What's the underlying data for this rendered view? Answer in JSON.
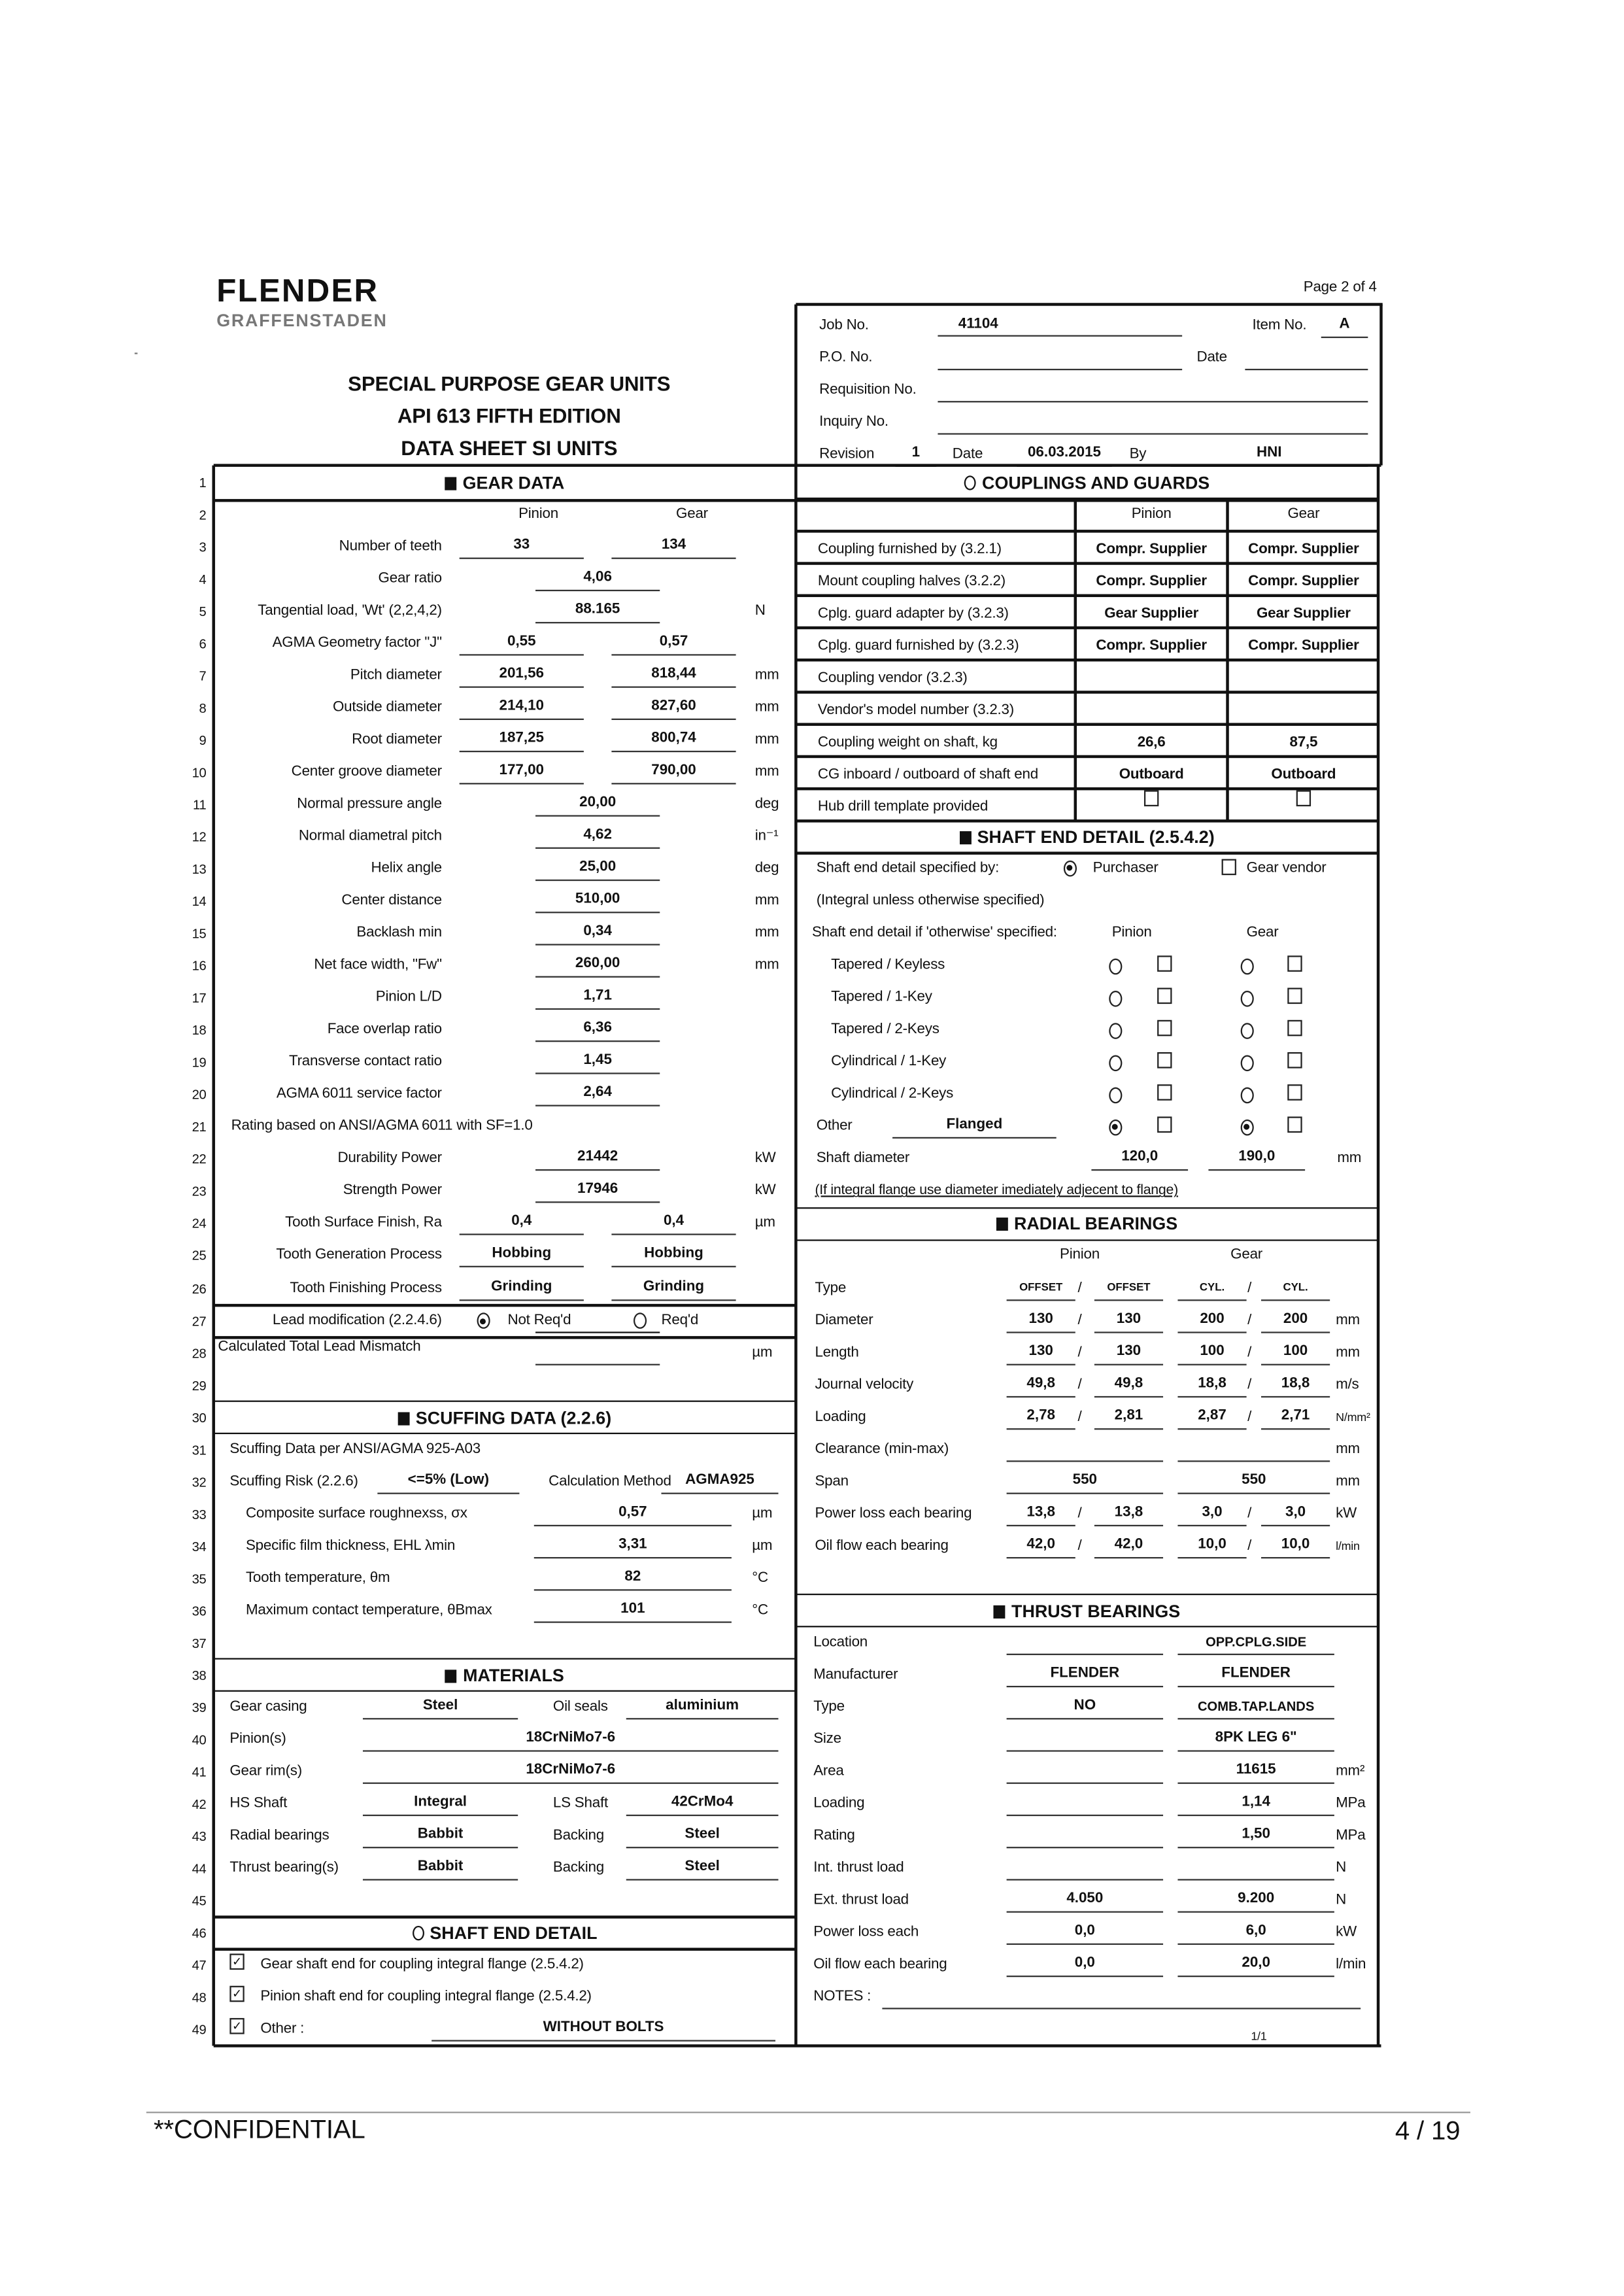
{
  "header": {
    "logo_main": "FLENDER",
    "logo_sub": "GRAFFENSTADEN",
    "page": "Page 2 of 4",
    "titles": [
      "SPECIAL PURPOSE GEAR UNITS",
      "API 613 FIFTH EDITION",
      "DATA SHEET SI UNITS"
    ]
  },
  "job": {
    "job_no_label": "Job No.",
    "job_no": "41104",
    "item_no_label": "Item No.",
    "item_no": "A",
    "po_label": "P.O. No.",
    "po": "",
    "date_label": "Date",
    "date": "",
    "requisition_label": "Requisition No.",
    "requisition": "",
    "inquiry_label": "Inquiry No.",
    "inquiry": "",
    "revision_label": "Revision",
    "revision": "1",
    "rev_date_label": "Date",
    "rev_date": "06.03.2015",
    "by_label": "By",
    "by": "HNI"
  },
  "row_numbers": [
    "1",
    "2",
    "3",
    "4",
    "5",
    "6",
    "7",
    "8",
    "9",
    "10",
    "11",
    "12",
    "13",
    "14",
    "15",
    "16",
    "17",
    "18",
    "19",
    "20",
    "21",
    "22",
    "23",
    "24",
    "25",
    "26",
    "27",
    "28",
    "29",
    "30",
    "31",
    "32",
    "33",
    "34",
    "35",
    "36",
    "37",
    "38",
    "39",
    "40",
    "41",
    "42",
    "43",
    "44",
    "45",
    "46",
    "47",
    "48",
    "49"
  ],
  "gear_data": {
    "title": "GEAR DATA",
    "col_pinion": "Pinion",
    "col_gear": "Gear",
    "rows": [
      {
        "label": "Number of teeth",
        "pinion": "33",
        "gear": "134",
        "unit": ""
      },
      {
        "label": "Gear ratio",
        "value": "4,06",
        "unit": ""
      },
      {
        "label": "Tangential load, 'Wt' (2,2,4,2)",
        "value": "88.165",
        "unit": "N"
      },
      {
        "label": "AGMA Geometry factor \"J\"",
        "pinion": "0,55",
        "gear": "0,57",
        "unit": ""
      },
      {
        "label": "Pitch diameter",
        "pinion": "201,56",
        "gear": "818,44",
        "unit": "mm"
      },
      {
        "label": "Outside diameter",
        "pinion": "214,10",
        "gear": "827,60",
        "unit": "mm"
      },
      {
        "label": "Root diameter",
        "pinion": "187,25",
        "gear": "800,74",
        "unit": "mm"
      },
      {
        "label": "Center groove diameter",
        "pinion": "177,00",
        "gear": "790,00",
        "unit": "mm"
      },
      {
        "label": "Normal pressure angle",
        "value": "20,00",
        "unit": "deg"
      },
      {
        "label": "Normal diametral pitch",
        "value": "4,62",
        "unit": "in⁻¹"
      },
      {
        "label": "Helix angle",
        "value": "25,00",
        "unit": "deg"
      },
      {
        "label": "Center distance",
        "value": "510,00",
        "unit": "mm"
      },
      {
        "label": "Backlash min",
        "value": "0,34",
        "unit": "mm"
      },
      {
        "label": "Net face width, \"Fw\"",
        "value": "260,00",
        "unit": "mm"
      },
      {
        "label": "Pinion L/D",
        "value": "1,71",
        "unit": ""
      },
      {
        "label": "Face overlap ratio",
        "value": "6,36",
        "unit": ""
      },
      {
        "label": "Transverse contact ratio",
        "value": "1,45",
        "unit": ""
      },
      {
        "label": "AGMA 6011 service factor",
        "value": "2,64",
        "unit": ""
      },
      {
        "note": "Rating based on ANSI/AGMA 6011 with SF=1.0"
      },
      {
        "label": "Durability Power",
        "value": "21442",
        "unit": "kW"
      },
      {
        "label": "Strength Power",
        "value": "17946",
        "unit": "kW"
      },
      {
        "label": "Tooth Surface Finish, Ra",
        "pinion": "0,4",
        "gear": "0,4",
        "unit": "µm"
      },
      {
        "label": "Tooth Generation Process",
        "pinion": "Hobbing",
        "gear": "Hobbing",
        "unit": ""
      },
      {
        "label": "Tooth Finishing Process",
        "pinion": "Grinding",
        "gear": "Grinding",
        "unit": ""
      }
    ],
    "lead_mod": {
      "label": "Lead modification (2.2.4.6)",
      "opt1": "Not Req'd",
      "opt2": "Req'd",
      "selected": "Not Req'd"
    },
    "lead_mismatch": {
      "label": "Calculated Total Lead Mismatch",
      "value": "",
      "unit": "µm"
    }
  },
  "scuffing": {
    "title": "SCUFFING DATA (2.2.6)",
    "note": "Scuffing Data per ANSI/AGMA 925-A03",
    "risk_label": "Scuffing Risk (2.2.6)",
    "risk": "<=5% (Low)",
    "method_label": "Calculation Method",
    "method": "AGMA925",
    "rows": [
      {
        "label": "Composite surface roughnexss, σx",
        "value": "0,57",
        "unit": "µm"
      },
      {
        "label": "Specific film thickness, EHL λmin",
        "value": "3,31",
        "unit": "µm"
      },
      {
        "label": "Tooth temperature, θm",
        "value": "82",
        "unit": "°C"
      },
      {
        "label": "Maximum contact temperature, θBmax",
        "value": "101",
        "unit": "°C"
      }
    ]
  },
  "materials": {
    "title": "MATERIALS",
    "rows": [
      {
        "label": "Gear casing",
        "value": "Steel",
        "label2": "Oil seals",
        "value2": "aluminium"
      },
      {
        "label": "Pinion(s)",
        "wide": "18CrNiMo7-6"
      },
      {
        "label": "Gear rim(s)",
        "wide": "18CrNiMo7-6"
      },
      {
        "label": "HS Shaft",
        "value": "Integral",
        "label2": "LS Shaft",
        "value2": "42CrMo4"
      },
      {
        "label": "Radial bearings",
        "value": "Babbit",
        "label2": "Backing",
        "value2": "Steel"
      },
      {
        "label": "Thrust bearing(s)",
        "value": "Babbit",
        "label2": "Backing",
        "value2": "Steel"
      }
    ]
  },
  "shaft_end_left": {
    "title": "SHAFT END DETAIL",
    "items": [
      {
        "label": "Gear shaft end for coupling integral flange (2.5.4.2)",
        "checked": true
      },
      {
        "label": "Pinion shaft end for coupling integral flange (2.5.4.2)",
        "checked": true
      },
      {
        "label": "Other :",
        "checked": true,
        "value": "WITHOUT BOLTS"
      }
    ]
  },
  "couplings": {
    "title": "COUPLINGS AND GUARDS",
    "col_pinion": "Pinion",
    "col_gear": "Gear",
    "rows": [
      {
        "label": "Coupling furnished by (3.2.1)",
        "pinion": "Compr. Supplier",
        "gear": "Compr. Supplier"
      },
      {
        "label": "Mount coupling halves (3.2.2)",
        "pinion": "Compr. Supplier",
        "gear": "Compr. Supplier"
      },
      {
        "label": "Cplg. guard adapter by (3.2.3)",
        "pinion": "Gear Supplier",
        "gear": "Gear Supplier"
      },
      {
        "label": "Cplg. guard furnished by (3.2.3)",
        "pinion": "Compr. Supplier",
        "gear": "Compr. Supplier"
      },
      {
        "label": "Coupling vendor (3.2.3)",
        "pinion": "",
        "gear": ""
      },
      {
        "label": "Vendor's model number (3.2.3)",
        "pinion": "",
        "gear": ""
      },
      {
        "label": "Coupling weight on shaft, kg",
        "pinion": "26,6",
        "gear": "87,5"
      },
      {
        "label": "CG inboard / outboard of shaft end",
        "pinion": "Outboard",
        "gear": "Outboard"
      },
      {
        "label": "Hub drill template provided",
        "pinion_checked": false,
        "gear_checked": false
      }
    ]
  },
  "shaft_end_right": {
    "title": "SHAFT END DETAIL (2.5.4.2)",
    "specified_by_label": "Shaft end detail specified by:",
    "purchaser": "Purchaser",
    "purchaser_selected": true,
    "gear_vendor": "Gear vendor",
    "gear_vendor_checked": false,
    "integral_note": "(Integral unless otherwise specified)",
    "otherwise_label": "Shaft end detail if 'otherwise' specified:",
    "col_pinion": "Pinion",
    "col_gear": "Gear",
    "options": [
      {
        "label": "Tapered / Keyless",
        "pinion": false,
        "gear": false
      },
      {
        "label": "Tapered / 1-Key",
        "pinion": false,
        "gear": false
      },
      {
        "label": "Tapered / 2-Keys",
        "pinion": false,
        "gear": false
      },
      {
        "label": "Cylindrical / 1-Key",
        "pinion": false,
        "gear": false
      },
      {
        "label": "Cylindrical / 2-Keys",
        "pinion": false,
        "gear": false
      }
    ],
    "other_label": "Other",
    "other_value": "Flanged",
    "other_pinion": true,
    "other_gear": true,
    "diameter_label": "Shaft diameter",
    "diameter_pinion": "120,0",
    "diameter_gear": "190,0",
    "diameter_unit": "mm",
    "diameter_note": "(If integral flange use diameter imediately adjecent to flange)"
  },
  "radial": {
    "title": "RADIAL BEARINGS",
    "col_pinion": "Pinion",
    "col_gear": "Gear",
    "rows": [
      {
        "label": "Type",
        "p1": "OFFSET",
        "p2": "OFFSET",
        "g1": "CYL.",
        "g2": "CYL.",
        "unit": ""
      },
      {
        "label": "Diameter",
        "p1": "130",
        "p2": "130",
        "g1": "200",
        "g2": "200",
        "unit": "mm"
      },
      {
        "label": "Length",
        "p1": "130",
        "p2": "130",
        "g1": "100",
        "g2": "100",
        "unit": "mm"
      },
      {
        "label": "Journal velocity",
        "p1": "49,8",
        "p2": "49,8",
        "g1": "18,8",
        "g2": "18,8",
        "unit": "m/s"
      },
      {
        "label": "Loading",
        "p1": "2,78",
        "p2": "2,81",
        "g1": "2,87",
        "g2": "2,71",
        "unit": "N/mm²"
      },
      {
        "label": "Clearance (min-max)",
        "p": "",
        "g": "",
        "unit": "mm"
      },
      {
        "label": "Span",
        "p": "550",
        "g": "550",
        "unit": "mm"
      },
      {
        "label": "Power loss each bearing",
        "p1": "13,8",
        "p2": "13,8",
        "g1": "3,0",
        "g2": "3,0",
        "unit": "kW"
      },
      {
        "label": "Oil flow each bearing",
        "p1": "42,0",
        "p2": "42,0",
        "g1": "10,0",
        "g2": "10,0",
        "unit": "l/min"
      }
    ],
    "separator": "/"
  },
  "thrust": {
    "title": "THRUST BEARINGS",
    "rows": [
      {
        "label": "Location",
        "p": "",
        "g": "OPP.CPLG.SIDE",
        "unit": ""
      },
      {
        "label": "Manufacturer",
        "p": "FLENDER",
        "g": "FLENDER",
        "unit": ""
      },
      {
        "label": "Type",
        "p": "NO",
        "g": "COMB.TAP.LANDS",
        "unit": ""
      },
      {
        "label": "Size",
        "p": "",
        "g": "8PK LEG 6\"",
        "unit": ""
      },
      {
        "label": "Area",
        "p": "",
        "g": "11615",
        "unit": "mm²"
      },
      {
        "label": "Loading",
        "p": "",
        "g": "1,14",
        "unit": "MPa"
      },
      {
        "label": "Rating",
        "p": "",
        "g": "1,50",
        "unit": "MPa"
      },
      {
        "label": "Int. thrust load",
        "p": "",
        "g": "",
        "unit": "N"
      },
      {
        "label": "Ext. thrust load",
        "p": "4.050",
        "g": "9.200",
        "unit": "N"
      },
      {
        "label": "Power loss each",
        "p": "0,0",
        "g": "6,0",
        "unit": "kW"
      },
      {
        "label": "Oil flow each bearing",
        "p": "0,0",
        "g": "20,0",
        "unit": "l/min"
      }
    ],
    "notes_label": "NOTES :",
    "notes": "",
    "page_fraction": "1/1"
  },
  "footer": {
    "confidential": "**CONFIDENTIAL",
    "page": "4 / 19"
  }
}
